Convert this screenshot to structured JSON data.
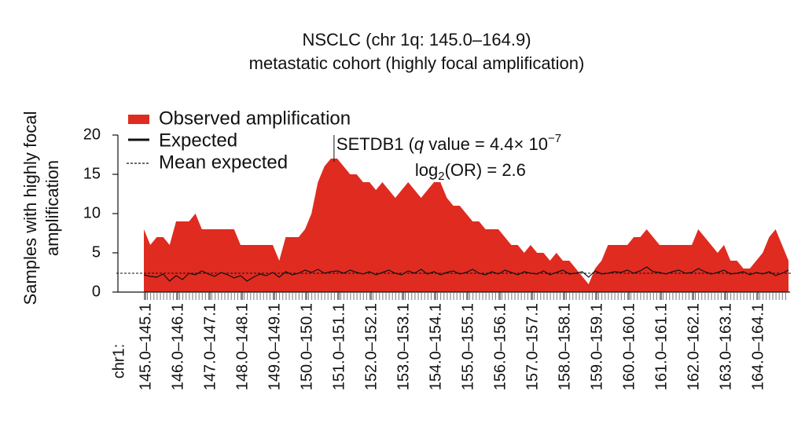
{
  "chart_data": {
    "type": "area",
    "title": [
      "NSCLC (chr 1q: 145.0–164.9)",
      "metastatic cohort (highly focal amplification)"
    ],
    "y_label": [
      "Samples with highly focal",
      "amplification"
    ],
    "x_prefix": "chr1:",
    "x": [
      145.0,
      145.2,
      145.4,
      145.6,
      145.8,
      146.0,
      146.2,
      146.4,
      146.6,
      146.8,
      147.0,
      147.2,
      147.4,
      147.6,
      147.8,
      148.0,
      148.2,
      148.4,
      148.6,
      148.8,
      149.0,
      149.2,
      149.4,
      149.6,
      149.8,
      150.0,
      150.2,
      150.4,
      150.6,
      150.8,
      151.0,
      151.2,
      151.4,
      151.6,
      151.8,
      152.0,
      152.2,
      152.4,
      152.6,
      152.8,
      153.0,
      153.2,
      153.4,
      153.6,
      153.8,
      154.0,
      154.2,
      154.4,
      154.6,
      154.8,
      155.0,
      155.2,
      155.4,
      155.6,
      155.8,
      156.0,
      156.2,
      156.4,
      156.6,
      156.8,
      157.0,
      157.2,
      157.4,
      157.6,
      157.8,
      158.0,
      158.2,
      158.4,
      158.6,
      158.8,
      159.0,
      159.2,
      159.4,
      159.6,
      159.8,
      160.0,
      160.2,
      160.4,
      160.6,
      160.8,
      161.0,
      161.2,
      161.4,
      161.6,
      161.8,
      162.0,
      162.2,
      162.4,
      162.6,
      162.8,
      163.0,
      163.2,
      163.4,
      163.6,
      163.8,
      164.0,
      164.2,
      164.4,
      164.6,
      164.8,
      165.0
    ],
    "series": [
      {
        "name": "Observed amplification",
        "color": "#e02b20",
        "style": "area",
        "values": [
          8,
          6,
          7,
          7,
          6,
          9,
          9,
          9,
          10,
          8,
          8,
          8,
          8,
          8,
          8,
          6,
          6,
          6,
          6,
          6,
          6,
          4,
          7,
          7,
          7,
          8,
          10,
          14,
          16,
          17,
          17,
          16,
          15,
          15,
          14,
          14,
          13,
          14,
          13,
          12,
          13,
          14,
          13,
          12,
          13,
          14,
          14,
          12,
          11,
          11,
          10,
          9,
          9,
          8,
          8,
          8,
          7,
          6,
          6,
          5,
          6,
          5,
          5,
          4,
          5,
          4,
          4,
          3,
          2,
          1,
          3,
          4,
          6,
          6,
          6,
          6,
          7,
          7,
          8,
          7,
          6,
          6,
          6,
          6,
          6,
          6,
          8,
          7,
          6,
          5,
          6,
          4,
          4,
          3,
          3,
          4,
          5,
          7,
          8,
          6,
          4
        ]
      },
      {
        "name": "Expected",
        "color": "#111111",
        "style": "line",
        "values": [
          2.2,
          2.0,
          1.9,
          2.3,
          1.4,
          2.1,
          1.6,
          2.4,
          2.2,
          2.7,
          2.3,
          2.0,
          2.5,
          2.2,
          1.8,
          2.1,
          1.4,
          1.9,
          2.3,
          2.1,
          2.5,
          1.9,
          2.6,
          2.2,
          2.4,
          2.8,
          2.5,
          2.9,
          2.4,
          2.6,
          2.7,
          2.4,
          2.8,
          2.5,
          2.3,
          2.6,
          2.2,
          2.5,
          2.8,
          2.4,
          2.2,
          2.7,
          2.4,
          2.9,
          2.3,
          2.6,
          2.2,
          2.5,
          2.7,
          2.3,
          2.5,
          2.9,
          2.4,
          2.2,
          2.6,
          2.3,
          2.8,
          2.5,
          2.2,
          2.6,
          2.4,
          2.3,
          2.7,
          2.2,
          2.5,
          2.8,
          2.3,
          2.4,
          2.6,
          1.9,
          2.7,
          2.3,
          2.4,
          2.6,
          2.5,
          2.8,
          2.4,
          2.7,
          3.2,
          2.6,
          2.5,
          2.3,
          2.6,
          2.8,
          2.4,
          2.5,
          3.0,
          2.6,
          2.3,
          2.5,
          2.8,
          2.3,
          2.4,
          2.6,
          2.2,
          2.5,
          2.3,
          2.6,
          2.1,
          2.4,
          2.8
        ]
      }
    ],
    "reference_lines": [
      {
        "name": "Mean expected",
        "value": 2.4,
        "color": "#111111",
        "style": "dashed"
      }
    ],
    "xlim": [
      145,
      165
    ],
    "xticks": [
      {
        "value": 145.05,
        "label": "145.0–145.1"
      },
      {
        "value": 146.05,
        "label": "146.0–146.1"
      },
      {
        "value": 147.05,
        "label": "147.0–147.1"
      },
      {
        "value": 148.05,
        "label": "148.0–148.1"
      },
      {
        "value": 149.05,
        "label": "149.0–149.1"
      },
      {
        "value": 150.05,
        "label": "150.0–150.1"
      },
      {
        "value": 151.05,
        "label": "151.0–151.1"
      },
      {
        "value": 152.05,
        "label": "152.0–152.1"
      },
      {
        "value": 153.05,
        "label": "153.0–153.1"
      },
      {
        "value": 154.05,
        "label": "154.0–154.1"
      },
      {
        "value": 155.05,
        "label": "155.0–155.1"
      },
      {
        "value": 156.05,
        "label": "156.0–156.1"
      },
      {
        "value": 157.05,
        "label": "157.0–157.1"
      },
      {
        "value": 158.05,
        "label": "158.0–158.1"
      },
      {
        "value": 159.05,
        "label": "159.0–159.1"
      },
      {
        "value": 160.05,
        "label": "160.0–160.1"
      },
      {
        "value": 161.05,
        "label": "161.0–161.1"
      },
      {
        "value": 162.05,
        "label": "162.0–162.1"
      },
      {
        "value": 163.05,
        "label": "163.0–163.1"
      },
      {
        "value": 164.05,
        "label": "164.0–164.1"
      }
    ],
    "ylim": [
      0,
      20
    ],
    "yticks": [
      0,
      5,
      10,
      15,
      20
    ],
    "annotation": {
      "x": 150.9,
      "line1": [
        "SETDB1 (",
        "q",
        " value = 4.4× 10",
        "−7"
      ],
      "line2": [
        "log",
        "2",
        "(OR) = 2.6"
      ]
    }
  }
}
